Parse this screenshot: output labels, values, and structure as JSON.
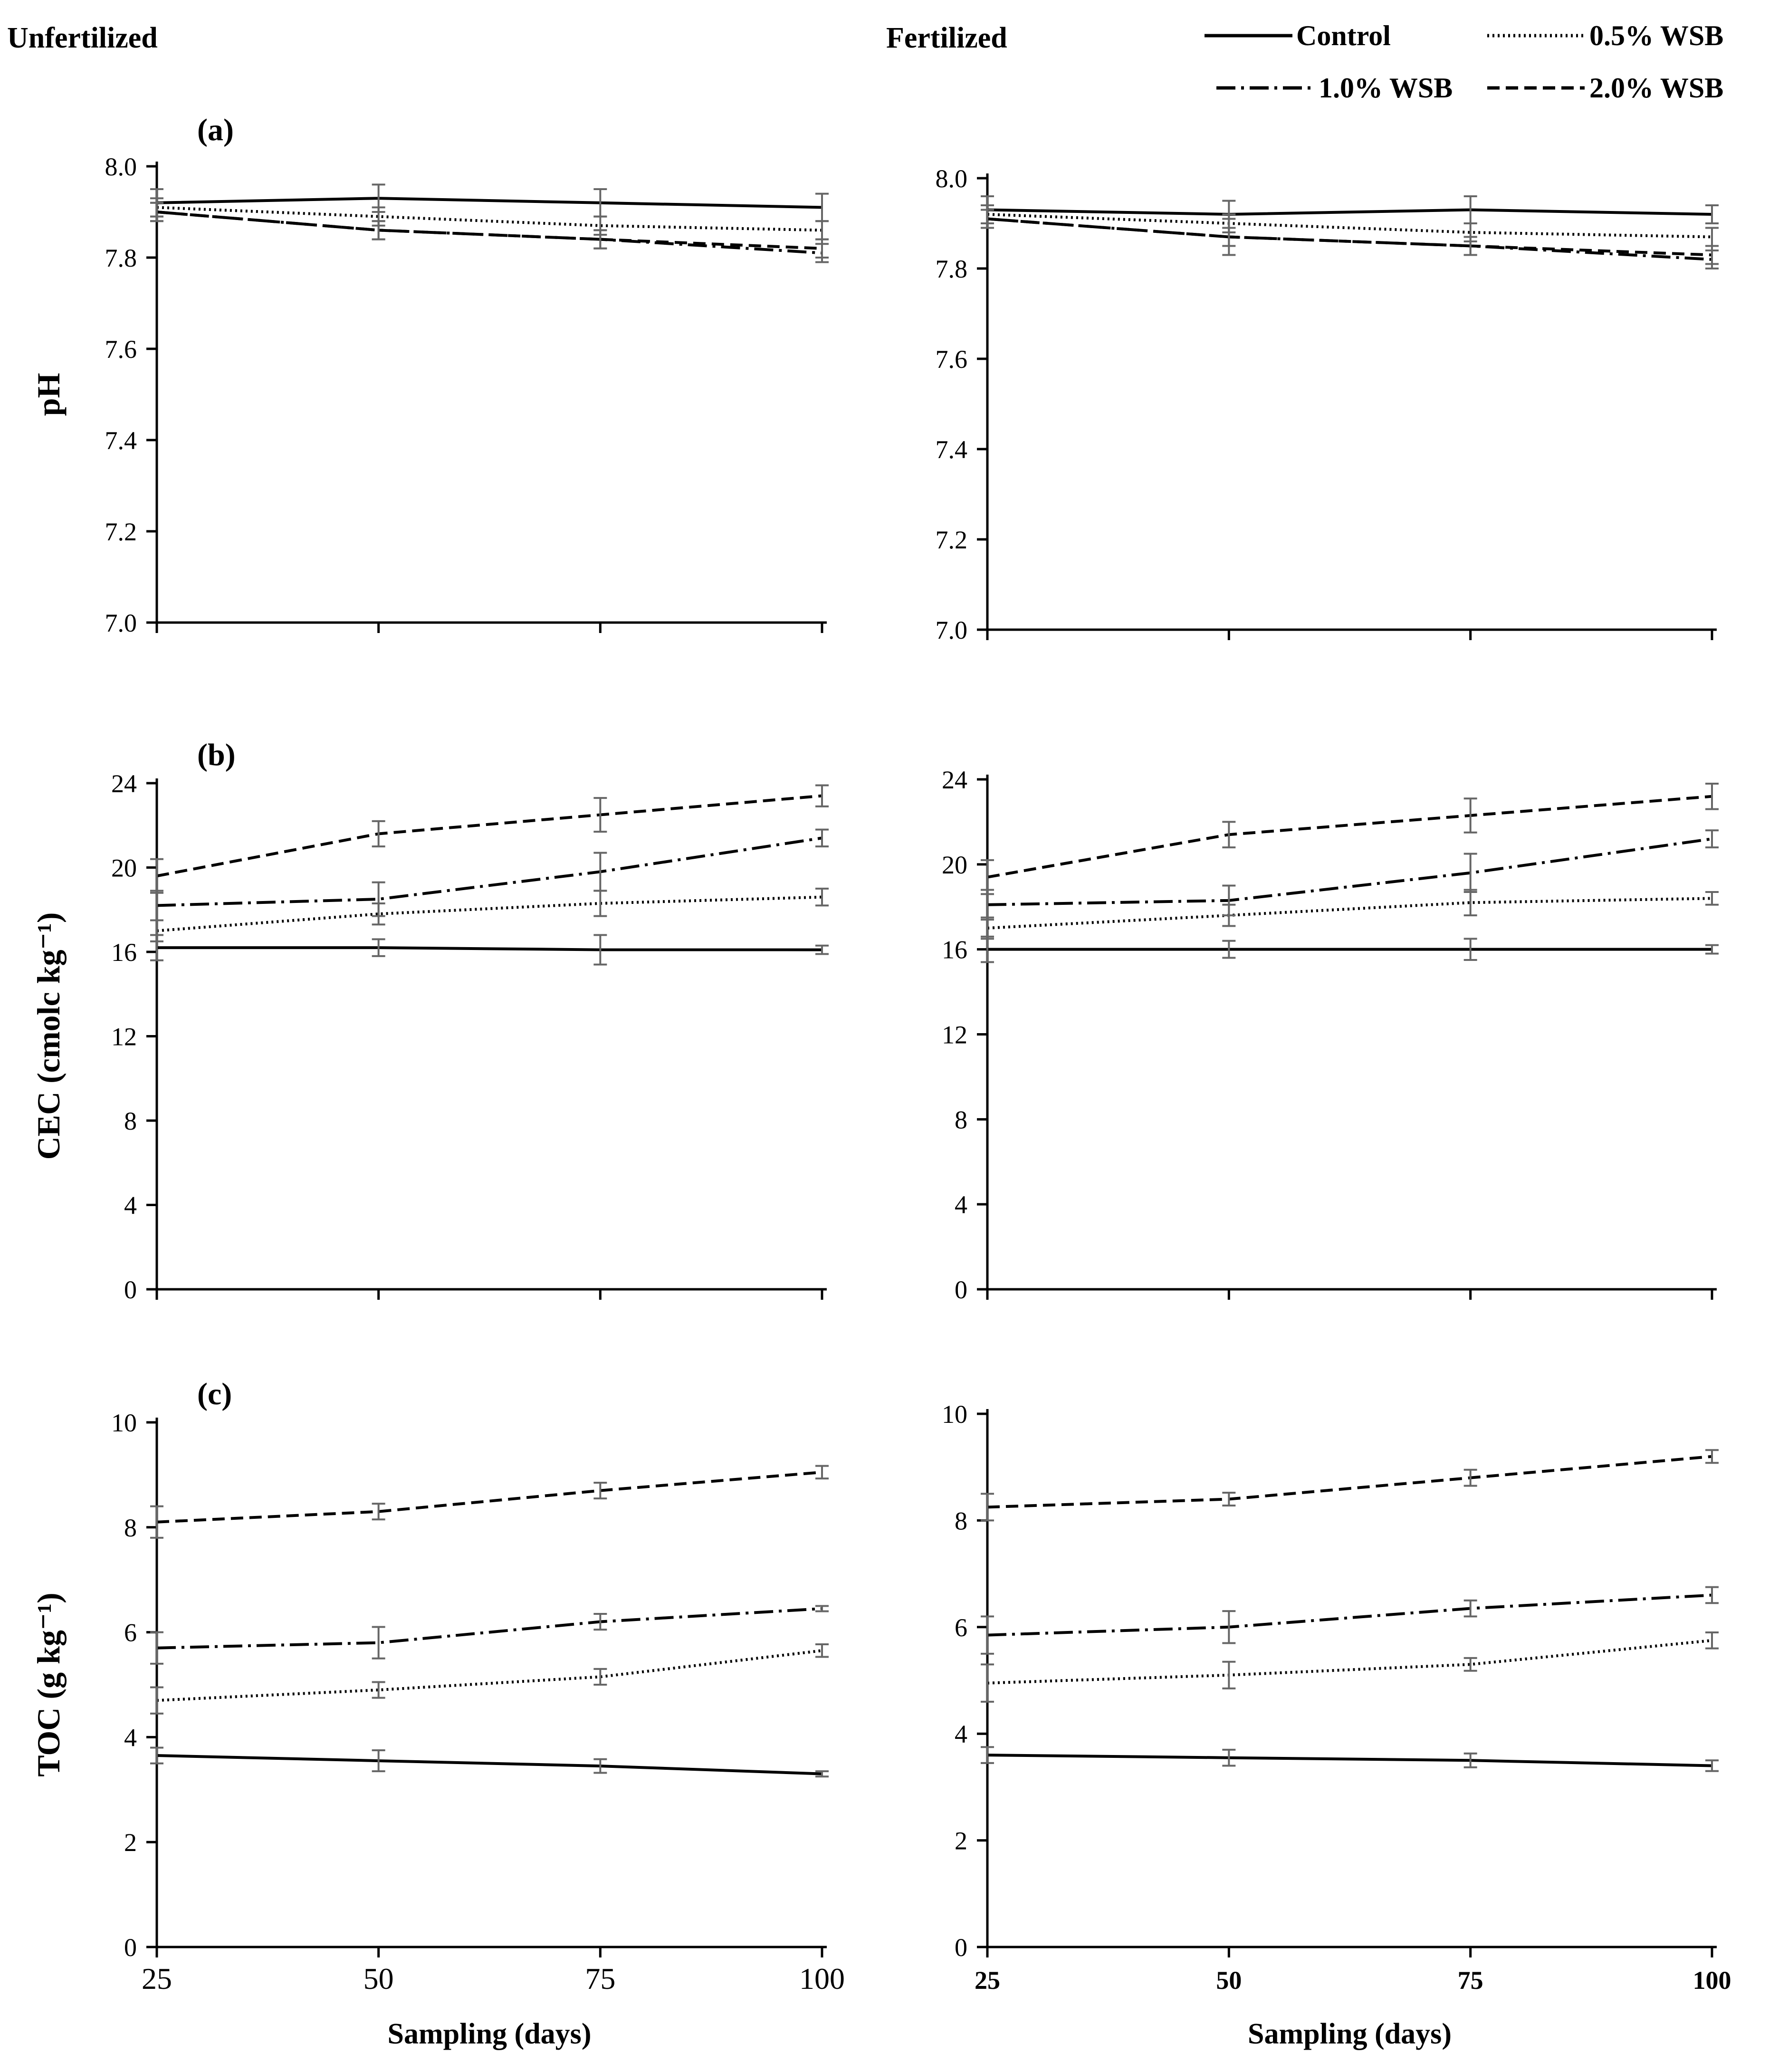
{
  "headers": {
    "left": "Unfertilized",
    "right": "Fertilized"
  },
  "legend": [
    {
      "key": "control",
      "label": "Control"
    },
    {
      "key": "wsb05",
      "label": "0.5% WSB"
    },
    {
      "key": "wsb10",
      "label": "1.0% WSB"
    },
    {
      "key": "wsb20",
      "label": "2.0% WSB"
    }
  ],
  "styles": {
    "line_color": "#000000",
    "errorbar_color": "#666666",
    "dash": {
      "control": "",
      "wsb05": "4 7",
      "wsb10": "40 12 6 12",
      "wsb20": "26 13"
    }
  },
  "xaxis": {
    "label": "Sampling (days)",
    "ticks": [
      "25",
      "50",
      "75",
      "100"
    ]
  },
  "chart_data": [
    {
      "id": "a-unfertilized",
      "type": "line",
      "panel_label": "(a)",
      "group": "Unfertilized",
      "row": 0,
      "col": 0,
      "ylabel": "pH",
      "ylim": [
        7.0,
        8.0
      ],
      "yticks": [
        "7.0",
        "7.2",
        "7.4",
        "7.6",
        "7.8",
        "8.0"
      ],
      "x": [
        25,
        50,
        75,
        100
      ],
      "series": [
        {
          "key": "control",
          "name": "Control",
          "values": [
            7.92,
            7.93,
            7.92,
            7.91
          ],
          "errors": [
            0.03,
            0.03,
            0.03,
            0.03
          ]
        },
        {
          "key": "wsb05",
          "name": "0.5% WSB",
          "values": [
            7.91,
            7.89,
            7.87,
            7.86
          ],
          "errors": [
            0.02,
            0.02,
            0.02,
            0.02
          ]
        },
        {
          "key": "wsb10",
          "name": "1.0% WSB",
          "values": [
            7.9,
            7.86,
            7.84,
            7.81
          ],
          "errors": [
            0.02,
            0.02,
            0.02,
            0.02
          ]
        },
        {
          "key": "wsb20",
          "name": "2.0% WSB",
          "values": [
            7.9,
            7.86,
            7.84,
            7.82
          ],
          "errors": [
            0.02,
            0.02,
            0.02,
            0.02
          ]
        }
      ]
    },
    {
      "id": "a-fertilized",
      "type": "line",
      "panel_label": "",
      "group": "Fertilized",
      "row": 0,
      "col": 1,
      "ylabel": "",
      "ylim": [
        7.0,
        8.0
      ],
      "yticks": [
        "7.0",
        "7.2",
        "7.4",
        "7.6",
        "7.8",
        "8.0"
      ],
      "x": [
        25,
        50,
        75,
        100
      ],
      "series": [
        {
          "key": "control",
          "name": "Control",
          "values": [
            7.93,
            7.92,
            7.93,
            7.92
          ],
          "errors": [
            0.03,
            0.03,
            0.03,
            0.02
          ]
        },
        {
          "key": "wsb05",
          "name": "0.5% WSB",
          "values": [
            7.92,
            7.9,
            7.88,
            7.87
          ],
          "errors": [
            0.02,
            0.02,
            0.02,
            0.02
          ]
        },
        {
          "key": "wsb10",
          "name": "1.0% WSB",
          "values": [
            7.91,
            7.87,
            7.85,
            7.82
          ],
          "errors": [
            0.02,
            0.04,
            0.02,
            0.02
          ]
        },
        {
          "key": "wsb20",
          "name": "2.0% WSB",
          "values": [
            7.91,
            7.87,
            7.85,
            7.83
          ],
          "errors": [
            0.02,
            0.02,
            0.02,
            0.02
          ]
        }
      ]
    },
    {
      "id": "b-unfertilized",
      "type": "line",
      "panel_label": "(b)",
      "group": "Unfertilized",
      "row": 1,
      "col": 0,
      "ylabel": "CEC (cmolc kg⁻¹)",
      "ylim": [
        0,
        24
      ],
      "yticks": [
        "0",
        "4",
        "8",
        "12",
        "16",
        "20",
        "24"
      ],
      "x": [
        25,
        50,
        75,
        100
      ],
      "series": [
        {
          "key": "control",
          "name": "Control",
          "values": [
            16.2,
            16.2,
            16.1,
            16.1
          ],
          "errors": [
            0.6,
            0.4,
            0.7,
            0.2
          ]
        },
        {
          "key": "wsb05",
          "name": "0.5% WSB",
          "values": [
            17.0,
            17.8,
            18.3,
            18.6
          ],
          "errors": [
            0.5,
            0.5,
            0.6,
            0.4
          ]
        },
        {
          "key": "wsb10",
          "name": "1.0% WSB",
          "values": [
            18.2,
            18.5,
            19.8,
            21.4
          ],
          "errors": [
            0.7,
            0.8,
            0.9,
            0.4
          ]
        },
        {
          "key": "wsb20",
          "name": "2.0% WSB",
          "values": [
            19.6,
            21.6,
            22.5,
            23.4
          ],
          "errors": [
            0.8,
            0.6,
            0.8,
            0.5
          ]
        }
      ]
    },
    {
      "id": "b-fertilized",
      "type": "line",
      "panel_label": "",
      "group": "Fertilized",
      "row": 1,
      "col": 1,
      "ylabel": "",
      "ylim": [
        0,
        24
      ],
      "yticks": [
        "0",
        "4",
        "8",
        "12",
        "16",
        "20",
        "24"
      ],
      "x": [
        25,
        50,
        75,
        100
      ],
      "series": [
        {
          "key": "control",
          "name": "Control",
          "values": [
            16.0,
            16.0,
            16.0,
            16.0
          ],
          "errors": [
            0.6,
            0.4,
            0.5,
            0.2
          ]
        },
        {
          "key": "wsb05",
          "name": "0.5% WSB",
          "values": [
            17.0,
            17.6,
            18.2,
            18.4
          ],
          "errors": [
            0.5,
            0.5,
            0.6,
            0.3
          ]
        },
        {
          "key": "wsb10",
          "name": "1.0% WSB",
          "values": [
            18.1,
            18.3,
            19.6,
            21.2
          ],
          "errors": [
            0.7,
            0.7,
            0.9,
            0.4
          ]
        },
        {
          "key": "wsb20",
          "name": "2.0% WSB",
          "values": [
            19.4,
            21.4,
            22.3,
            23.2
          ],
          "errors": [
            0.8,
            0.6,
            0.8,
            0.6
          ]
        }
      ]
    },
    {
      "id": "c-unfertilized",
      "type": "line",
      "panel_label": "(c)",
      "group": "Unfertilized",
      "row": 2,
      "col": 0,
      "ylabel": "TOC (g kg⁻¹)",
      "ylim": [
        0,
        10
      ],
      "yticks": [
        "0",
        "2",
        "4",
        "6",
        "8",
        "10"
      ],
      "x": [
        25,
        50,
        75,
        100
      ],
      "series": [
        {
          "key": "control",
          "name": "Control",
          "values": [
            3.65,
            3.55,
            3.45,
            3.3
          ],
          "errors": [
            0.15,
            0.2,
            0.13,
            0.05
          ]
        },
        {
          "key": "wsb05",
          "name": "0.5% WSB",
          "values": [
            4.7,
            4.9,
            5.15,
            5.65
          ],
          "errors": [
            0.25,
            0.15,
            0.15,
            0.12
          ]
        },
        {
          "key": "wsb10",
          "name": "1.0% WSB",
          "values": [
            5.7,
            5.8,
            6.2,
            6.45
          ],
          "errors": [
            0.3,
            0.3,
            0.15,
            0.05
          ]
        },
        {
          "key": "wsb20",
          "name": "2.0% WSB",
          "values": [
            8.1,
            8.3,
            8.7,
            9.05
          ],
          "errors": [
            0.3,
            0.15,
            0.15,
            0.12
          ]
        }
      ]
    },
    {
      "id": "c-fertilized",
      "type": "line",
      "panel_label": "",
      "group": "Fertilized",
      "row": 2,
      "col": 1,
      "ylabel": "",
      "ylim": [
        0,
        10
      ],
      "yticks": [
        "0",
        "2",
        "4",
        "6",
        "8",
        "10"
      ],
      "x": [
        25,
        50,
        75,
        100
      ],
      "series": [
        {
          "key": "control",
          "name": "Control",
          "values": [
            3.6,
            3.55,
            3.5,
            3.4
          ],
          "errors": [
            0.15,
            0.15,
            0.13,
            0.1
          ]
        },
        {
          "key": "wsb05",
          "name": "0.5% WSB",
          "values": [
            4.95,
            5.1,
            5.3,
            5.75
          ],
          "errors": [
            0.35,
            0.25,
            0.12,
            0.15
          ]
        },
        {
          "key": "wsb10",
          "name": "1.0% WSB",
          "values": [
            5.85,
            6.0,
            6.35,
            6.6
          ],
          "errors": [
            0.35,
            0.3,
            0.15,
            0.15
          ]
        },
        {
          "key": "wsb20",
          "name": "2.0% WSB",
          "values": [
            8.25,
            8.4,
            8.8,
            9.2
          ],
          "errors": [
            0.25,
            0.12,
            0.15,
            0.12
          ]
        }
      ]
    }
  ]
}
